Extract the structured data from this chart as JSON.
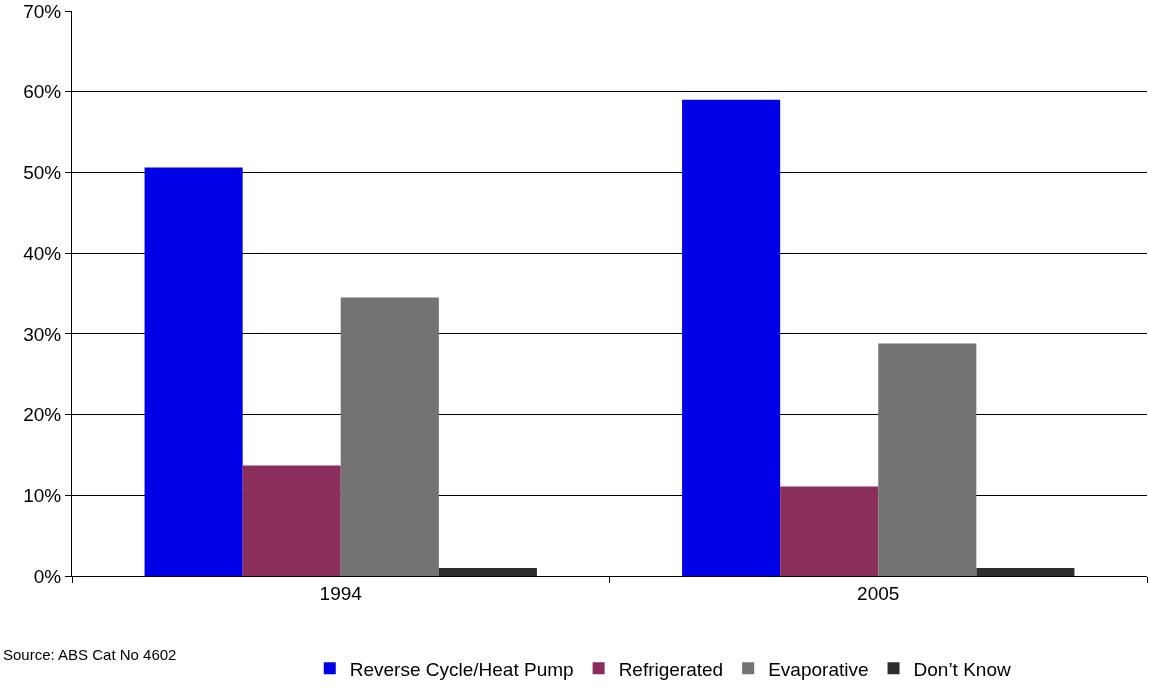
{
  "chart_data": {
    "type": "bar",
    "categories": [
      "1994",
      "2005"
    ],
    "series": [
      {
        "name": "Reverse Cycle/Heat Pump",
        "color": "#0000e6",
        "values": [
          50.6,
          59.0
        ]
      },
      {
        "name": "Refrigerated",
        "color": "#8a2f5c",
        "values": [
          13.7,
          11.1
        ]
      },
      {
        "name": "Evaporative",
        "color": "#737373",
        "values": [
          34.5,
          28.8
        ]
      },
      {
        "name": "Don’t Know",
        "color": "#2e2e2e",
        "values": [
          1.0,
          1.0
        ]
      }
    ],
    "ylim": [
      0,
      70
    ],
    "yticks": [
      {
        "value": 0,
        "label": "0%"
      },
      {
        "value": 10,
        "label": "10%"
      },
      {
        "value": 20,
        "label": "20%"
      },
      {
        "value": 30,
        "label": "30%"
      },
      {
        "value": 40,
        "label": "40%"
      },
      {
        "value": 50,
        "label": "50%"
      },
      {
        "value": 60,
        "label": "60%"
      },
      {
        "value": 70,
        "label": "70%"
      }
    ],
    "grid": "y",
    "legend": "bottom",
    "annotations": [
      "Source: ABS Cat No 4602"
    ]
  }
}
